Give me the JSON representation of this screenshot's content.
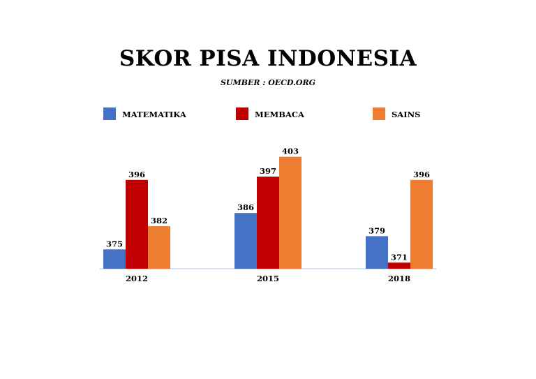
{
  "chart_data": {
    "type": "bar",
    "title": "SKOR PISA INDONESIA",
    "subtitle": "SUMBER : OECD.ORG",
    "categories": [
      "2012",
      "2015",
      "2018"
    ],
    "series": [
      {
        "name": "MATEMATIKA",
        "color": "#4472C4",
        "values": [
          375,
          386,
          379
        ]
      },
      {
        "name": "MEMBACA",
        "color": "#C00000",
        "values": [
          396,
          397,
          371
        ]
      },
      {
        "name": "SAINS",
        "color": "#ED7D31",
        "values": [
          382,
          403,
          396
        ]
      }
    ],
    "legend": "top",
    "grid": false,
    "axis_color": "#A9C4E0"
  }
}
